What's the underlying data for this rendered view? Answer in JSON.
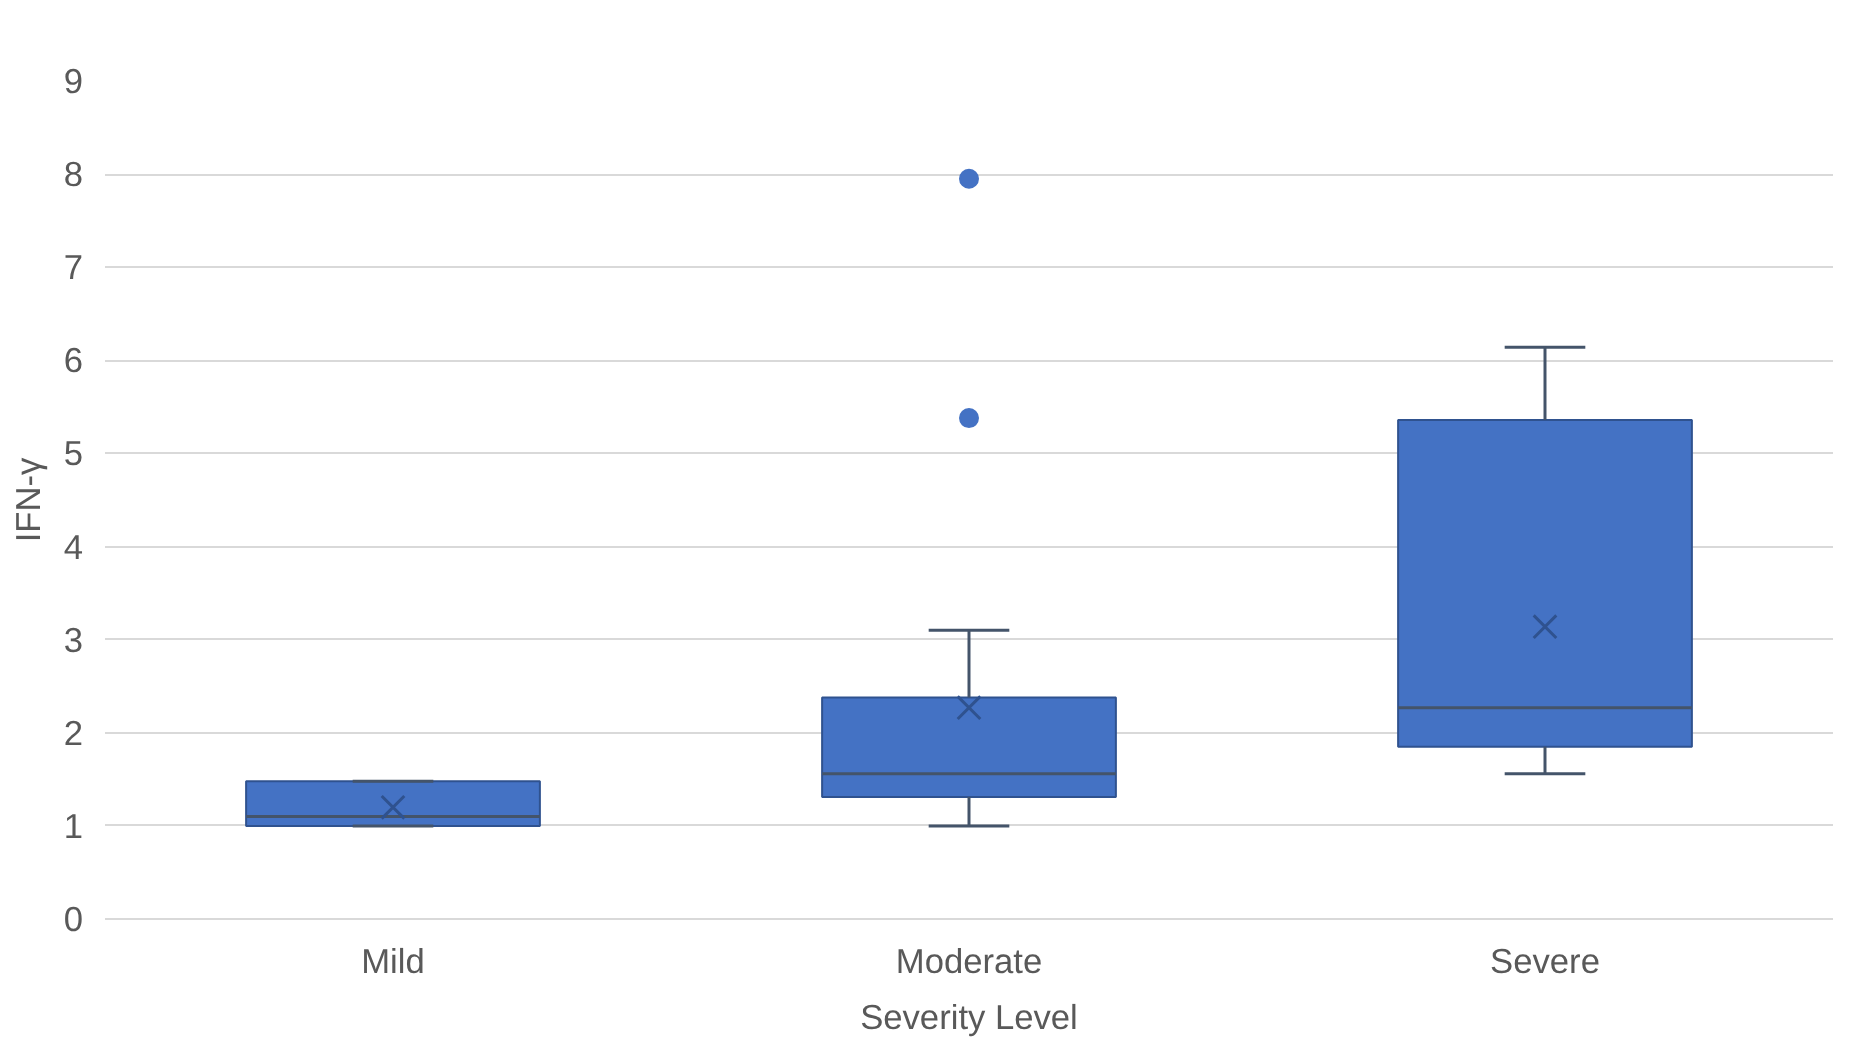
{
  "chart_data": {
    "type": "box",
    "xlabel": "Severity Level",
    "ylabel": "IFN-γ",
    "categories": [
      "Mild",
      "Moderate",
      "Severe"
    ],
    "color": "#4472c4",
    "ylim": [
      0,
      9
    ],
    "yticks": [
      0,
      1,
      2,
      3,
      4,
      5,
      6,
      7,
      8,
      9
    ],
    "grid": "y",
    "boxes": [
      {
        "low": 1.0,
        "q1": 1.0,
        "median": 1.1,
        "q3": 1.48,
        "high": 1.48,
        "mean": 1.2
      },
      {
        "low": 1.0,
        "q1": 1.31,
        "median": 1.56,
        "q3": 2.38,
        "high": 3.1,
        "mean": 2.27,
        "outliers": [
          5.38,
          7.95
        ]
      },
      {
        "low": 1.56,
        "q1": 1.85,
        "median": 2.27,
        "q3": 5.36,
        "high": 6.14,
        "mean": 3.14
      }
    ]
  }
}
